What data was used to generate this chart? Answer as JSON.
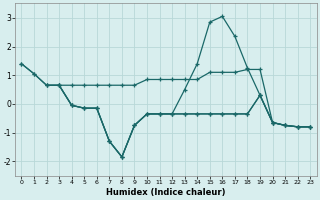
{
  "title": "",
  "xlabel": "Humidex (Indice chaleur)",
  "ylabel": "",
  "background_color": "#d8eeee",
  "grid_color": "#b8d8d8",
  "line_color": "#1a6868",
  "xlim": [
    -0.5,
    23.5
  ],
  "ylim": [
    -2.5,
    3.5
  ],
  "xticks": [
    0,
    1,
    2,
    3,
    4,
    5,
    6,
    7,
    8,
    9,
    10,
    11,
    12,
    13,
    14,
    15,
    16,
    17,
    18,
    19,
    20,
    21,
    22,
    23
  ],
  "yticks": [
    -2,
    -1,
    0,
    1,
    2,
    3
  ],
  "line1_x": [
    0,
    1,
    2,
    3,
    4,
    5,
    6,
    7,
    8,
    9,
    10,
    11,
    12,
    13,
    14,
    15,
    16,
    17,
    18,
    19,
    20,
    21,
    22,
    23
  ],
  "line1_y": [
    1.4,
    1.05,
    0.65,
    0.65,
    -0.05,
    -0.15,
    -0.15,
    -1.3,
    -1.85,
    -0.75,
    -0.35,
    -0.35,
    -0.35,
    0.5,
    1.4,
    2.85,
    3.05,
    2.35,
    1.25,
    0.3,
    -0.65,
    -0.75,
    -0.8,
    -0.8
  ],
  "line2_x": [
    0,
    1,
    2,
    3,
    4,
    5,
    6,
    7,
    8,
    9,
    10,
    11,
    12,
    13,
    14,
    15,
    16,
    17,
    18,
    19,
    20,
    21,
    22,
    23
  ],
  "line2_y": [
    1.4,
    1.05,
    0.65,
    0.65,
    0.65,
    0.65,
    0.65,
    0.65,
    0.65,
    0.65,
    0.85,
    0.85,
    0.85,
    0.85,
    0.85,
    1.1,
    1.1,
    1.1,
    1.2,
    1.2,
    -0.65,
    -0.75,
    -0.8,
    -0.8
  ],
  "line3_x": [
    2,
    3,
    4,
    5,
    6,
    7,
    8,
    9,
    10,
    11,
    12,
    13,
    14,
    15,
    16,
    17,
    18,
    19,
    20,
    21,
    22,
    23
  ],
  "line3_y": [
    0.65,
    0.65,
    -0.05,
    -0.15,
    -0.15,
    -1.3,
    -1.85,
    -0.75,
    -0.35,
    -0.35,
    -0.35,
    -0.35,
    -0.35,
    -0.35,
    -0.35,
    -0.35,
    -0.35,
    0.3,
    -0.65,
    -0.75,
    -0.8,
    -0.8
  ],
  "line4_x": [
    3,
    4,
    5,
    6,
    7,
    8,
    9,
    10,
    11,
    12,
    13,
    14,
    15,
    16,
    17,
    18,
    19,
    20,
    21,
    22,
    23
  ],
  "line4_y": [
    0.65,
    -0.05,
    -0.15,
    -0.15,
    -1.3,
    -1.85,
    -0.75,
    -0.35,
    -0.35,
    -0.35,
    -0.35,
    -0.35,
    -0.35,
    -0.35,
    -0.35,
    -0.35,
    0.3,
    -0.65,
    -0.75,
    -0.8,
    -0.8
  ]
}
